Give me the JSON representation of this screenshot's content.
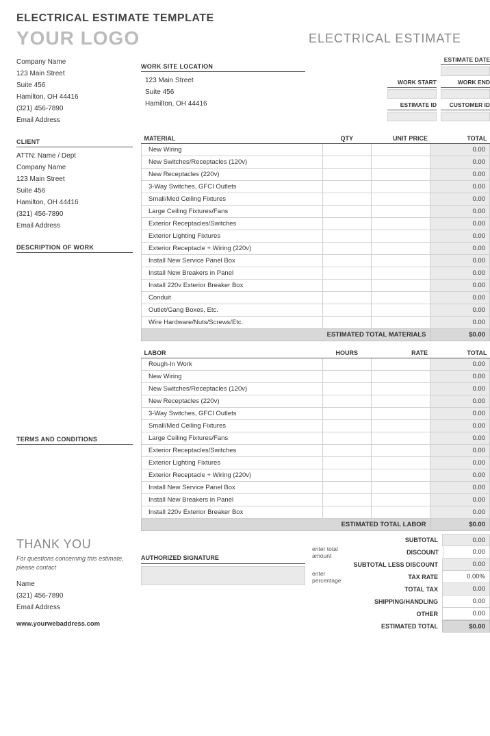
{
  "title": "ELECTRICAL ESTIMATE TEMPLATE",
  "logo": "YOUR LOGO",
  "doc_type": "ELECTRICAL ESTIMATE",
  "company": {
    "name": "Company Name",
    "street": "123 Main Street",
    "suite": "Suite 456",
    "city": "Hamilton, OH  44416",
    "phone": "(321) 456-7890",
    "email": "Email Address"
  },
  "worksite": {
    "label": "WORK SITE LOCATION",
    "street": "123 Main Street",
    "suite": "Suite 456",
    "city": "Hamilton, OH  44416"
  },
  "meta": {
    "estimate_date": "ESTIMATE DATE",
    "work_start": "WORK START",
    "work_end": "WORK END",
    "estimate_id": "ESTIMATE ID",
    "customer_id": "CUSTOMER ID"
  },
  "client": {
    "label": "CLIENT",
    "attn": "ATTN: Name / Dept",
    "name": "Company Name",
    "street": "123 Main Street",
    "suite": "Suite 456",
    "city": "Hamilton, OH  44416",
    "phone": "(321) 456-7890",
    "email": "Email Address"
  },
  "desc_label": "DESCRIPTION OF WORK",
  "terms_label": "TERMS AND CONDITIONS",
  "material": {
    "label": "MATERIAL",
    "qty_label": "QTY",
    "price_label": "UNIT PRICE",
    "total_label": "TOTAL",
    "subtotal_label": "ESTIMATED TOTAL MATERIALS",
    "subtotal": "$0.00",
    "rows": [
      {
        "name": "New Wiring",
        "total": "0.00"
      },
      {
        "name": "New Switches/Receptacles (120v)",
        "total": "0.00"
      },
      {
        "name": "New Receptacles (220v)",
        "total": "0.00"
      },
      {
        "name": "3-Way Switches, GFCI Outlets",
        "total": "0.00"
      },
      {
        "name": "Small/Med Ceiling Fixtures",
        "total": "0.00"
      },
      {
        "name": "Large Ceiling Fixtures/Fans",
        "total": "0.00"
      },
      {
        "name": "Exterior Receptacles/Switches",
        "total": "0.00"
      },
      {
        "name": "Exterior Lighting Fixtures",
        "total": "0.00"
      },
      {
        "name": "Exterior Receptacle + Wiring (220v)",
        "total": "0.00"
      },
      {
        "name": "Install New Service Panel Box",
        "total": "0.00"
      },
      {
        "name": "Install New Breakers in Panel",
        "total": "0.00"
      },
      {
        "name": "Install 220v Exterior Breaker Box",
        "total": "0.00"
      },
      {
        "name": "Conduit",
        "total": "0.00"
      },
      {
        "name": "Outlet/Gang Boxes, Etc.",
        "total": "0.00"
      },
      {
        "name": "Wire Hardware/Nuts/Screws/Etc.",
        "total": "0.00"
      }
    ]
  },
  "labor": {
    "label": "LABOR",
    "hours_label": "HOURS",
    "rate_label": "RATE",
    "total_label": "TOTAL",
    "subtotal_label": "ESTIMATED TOTAL LABOR",
    "subtotal": "$0.00",
    "rows": [
      {
        "name": "Rough-In Work",
        "total": "0.00"
      },
      {
        "name": "New Wiring",
        "total": "0.00"
      },
      {
        "name": "New Switches/Receptacles (120v)",
        "total": "0.00"
      },
      {
        "name": "New Receptacles (220v)",
        "total": "0.00"
      },
      {
        "name": "3-Way Switches, GFCI Outlets",
        "total": "0.00"
      },
      {
        "name": "Small/Med Ceiling Fixtures",
        "total": "0.00"
      },
      {
        "name": "Large Ceiling Fixtures/Fans",
        "total": "0.00"
      },
      {
        "name": "Exterior Receptacles/Switches",
        "total": "0.00"
      },
      {
        "name": "Exterior Lighting Fixtures",
        "total": "0.00"
      },
      {
        "name": "Exterior Receptacle + Wiring (220v)",
        "total": "0.00"
      },
      {
        "name": "Install New Service Panel Box",
        "total": "0.00"
      },
      {
        "name": "Install New Breakers in Panel",
        "total": "0.00"
      },
      {
        "name": "Install 220v Exterior Breaker Box",
        "total": "0.00"
      }
    ]
  },
  "summary": {
    "subtotal": {
      "label": "SUBTOTAL",
      "val": "0.00"
    },
    "discount": {
      "note": "enter total amount",
      "label": "DISCOUNT",
      "val": "0.00"
    },
    "less": {
      "label": "SUBTOTAL LESS DISCOUNT",
      "val": "0.00"
    },
    "taxrate": {
      "note": "enter percentage",
      "label": "TAX RATE",
      "val": "0.00%"
    },
    "totaltax": {
      "label": "TOTAL TAX",
      "val": "0.00"
    },
    "shipping": {
      "label": "SHIPPING/HANDLING",
      "val": "0.00"
    },
    "other": {
      "label": "OTHER",
      "val": "0.00"
    },
    "final": {
      "label": "ESTIMATED TOTAL",
      "val": "$0.00"
    }
  },
  "thankyou": "THANK YOU",
  "contact_note": "For questions concerning this estimate, please contact",
  "contact": {
    "name": "Name",
    "phone": "(321) 456-7890",
    "email": "Email Address"
  },
  "web": "www.yourwebaddress.com",
  "sig_label": "AUTHORIZED SIGNATURE"
}
